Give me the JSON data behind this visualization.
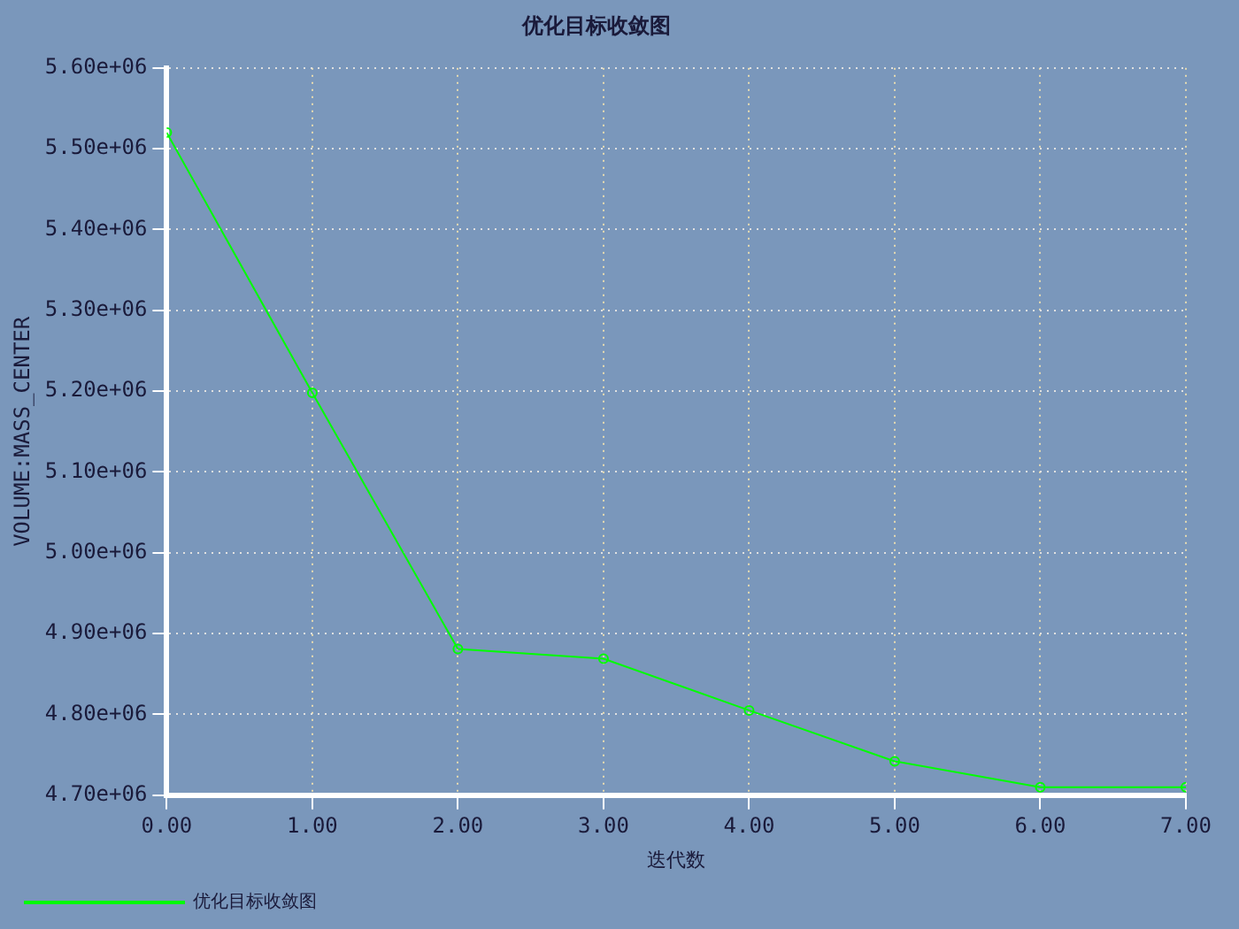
{
  "chart_data": {
    "type": "line",
    "title": "优化目标收敛图",
    "xlabel": "迭代数",
    "ylabel": "VOLUME:MASS_CENTER",
    "x": [
      0,
      1,
      2,
      3,
      4,
      5,
      6,
      7
    ],
    "series": [
      {
        "name": "优化目标收敛图",
        "color": "#00ff00",
        "values": [
          5520000,
          5198000,
          4881000,
          4869000,
          4805000,
          4742000,
          4710000,
          4710000
        ]
      }
    ],
    "xlim": [
      0,
      7
    ],
    "xticks": [
      {
        "value": 0,
        "label": "0.00"
      },
      {
        "value": 1,
        "label": "1.00"
      },
      {
        "value": 2,
        "label": "2.00"
      },
      {
        "value": 3,
        "label": "3.00"
      },
      {
        "value": 4,
        "label": "4.00"
      },
      {
        "value": 5,
        "label": "5.00"
      },
      {
        "value": 6,
        "label": "6.00"
      },
      {
        "value": 7,
        "label": "7.00"
      }
    ],
    "ylim": [
      4700000,
      5600000
    ],
    "yticks": [
      {
        "value": 4700000,
        "label": "4.70e+06"
      },
      {
        "value": 4800000,
        "label": "4.80e+06"
      },
      {
        "value": 4900000,
        "label": "4.90e+06"
      },
      {
        "value": 5000000,
        "label": "5.00e+06"
      },
      {
        "value": 5100000,
        "label": "5.10e+06"
      },
      {
        "value": 5200000,
        "label": "5.20e+06"
      },
      {
        "value": 5300000,
        "label": "5.30e+06"
      },
      {
        "value": 5400000,
        "label": "5.40e+06"
      },
      {
        "value": 5500000,
        "label": "5.50e+06"
      },
      {
        "value": 5600000,
        "label": "5.60e+06"
      }
    ],
    "grid": true,
    "legend": "bottom left",
    "marker": "circle",
    "line_style": "solid"
  }
}
